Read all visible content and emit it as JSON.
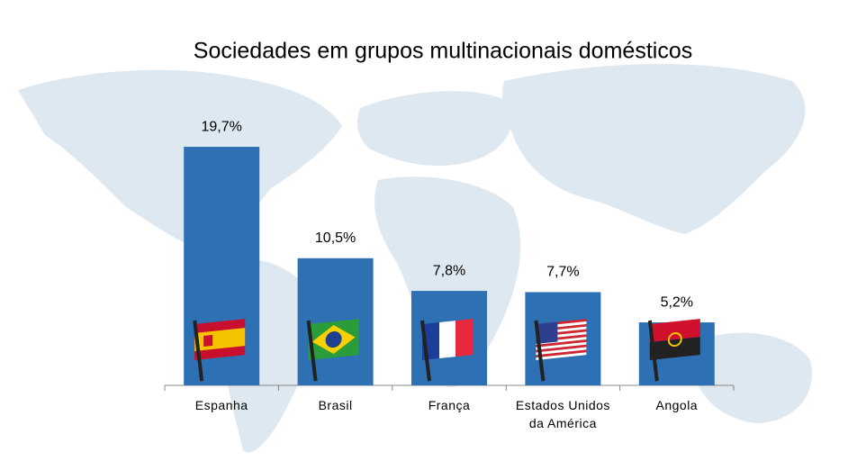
{
  "chart_data": {
    "type": "bar",
    "title": "Sociedades em grupos multinacionais domésticos",
    "categories": [
      "Espanha",
      "Brasil",
      "França",
      "Estados Unidos da América",
      "Angola"
    ],
    "values": [
      19.7,
      10.5,
      7.8,
      7.7,
      5.2
    ],
    "value_labels": [
      "19,7%",
      "10,5%",
      "7,8%",
      "7,7%",
      "5,2%"
    ],
    "color": "#2e70b4",
    "ylim": [
      0,
      20
    ]
  }
}
